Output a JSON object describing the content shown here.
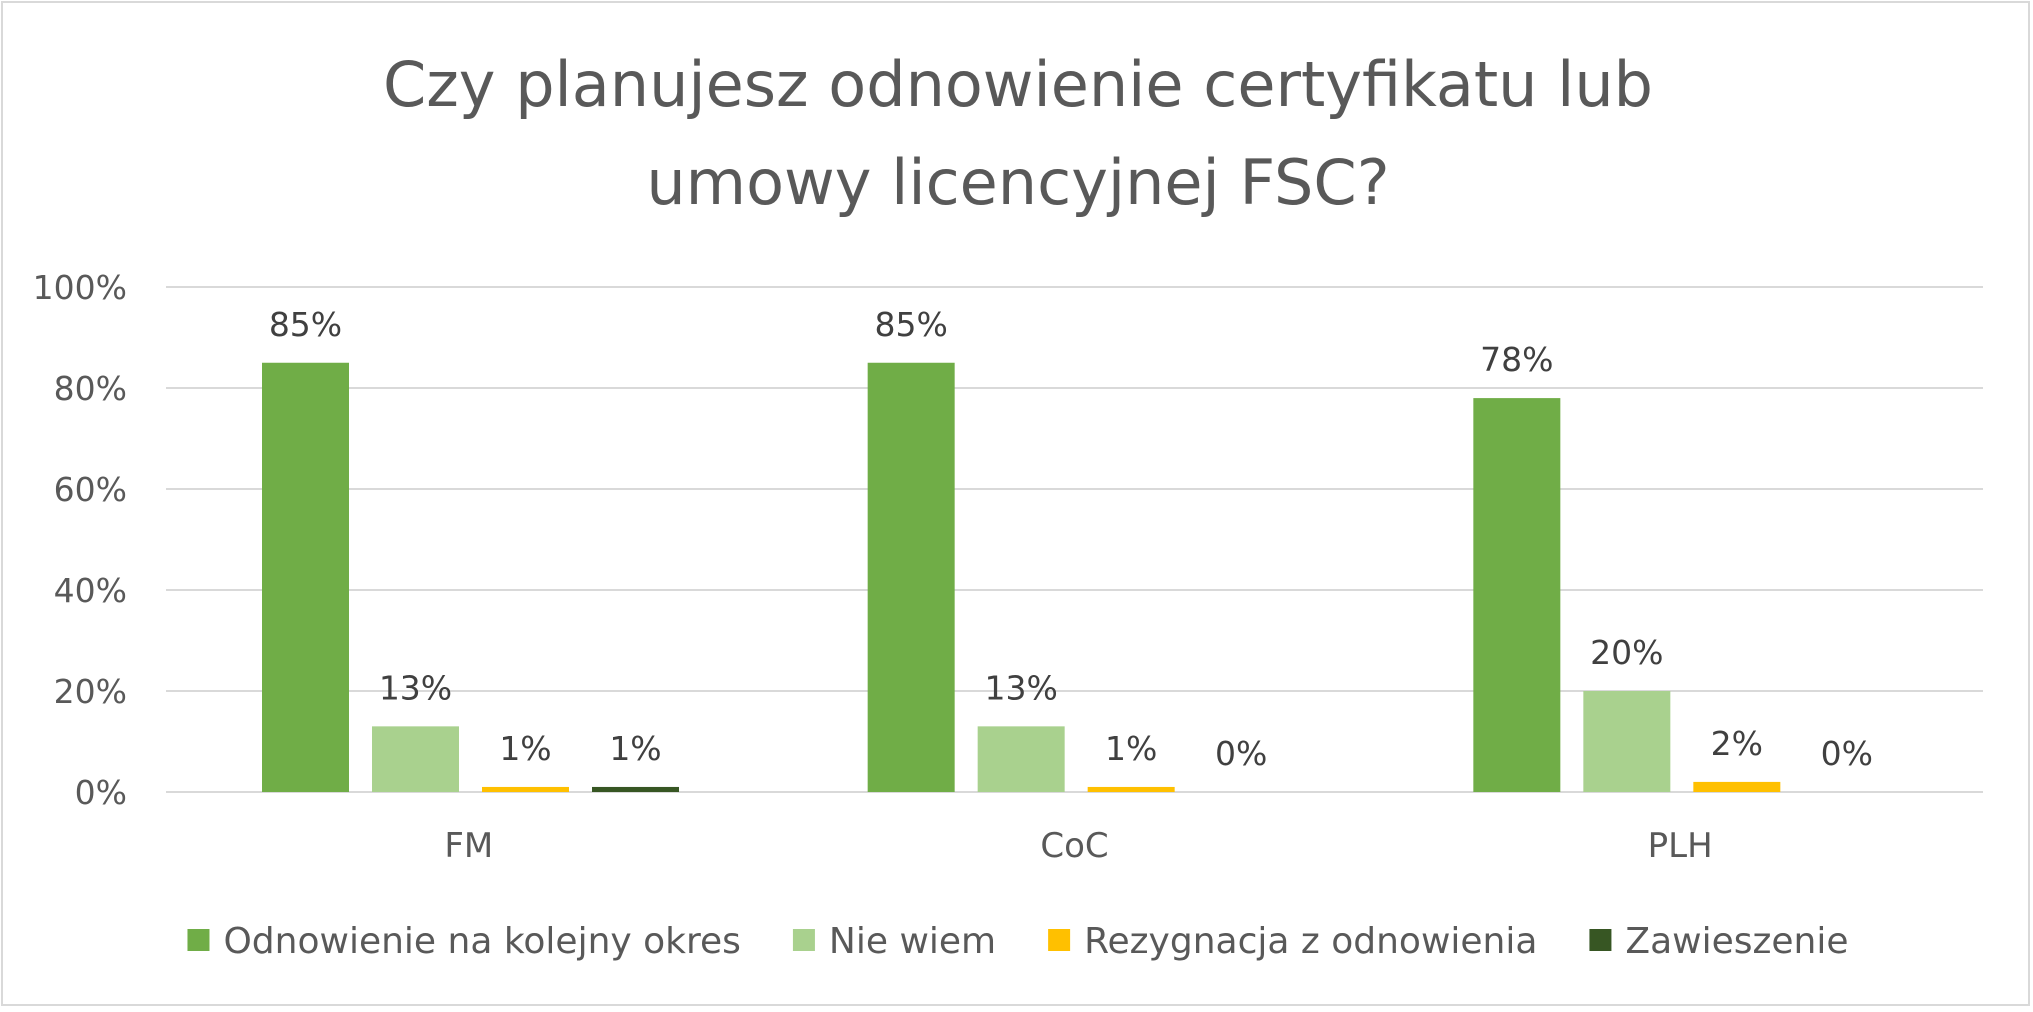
{
  "chart_data": {
    "type": "bar",
    "title_lines": [
      "Czy planujesz odnowienie certyfikatu lub",
      "umowy licencyjnej FSC?"
    ],
    "categories": [
      "FM",
      "CoC",
      "PLH"
    ],
    "series": [
      {
        "name": "Odnowienie na kolejny okres",
        "color": "#70ad47",
        "values": [
          85,
          85,
          78
        ],
        "labels": [
          "85%",
          "85%",
          "78%"
        ]
      },
      {
        "name": "Nie wiem",
        "color": "#a9d18e",
        "values": [
          13,
          13,
          20
        ],
        "labels": [
          "13%",
          "13%",
          "20%"
        ]
      },
      {
        "name": "Rezygnacja z odnowienia",
        "color": "#ffc000",
        "values": [
          1,
          1,
          2
        ],
        "labels": [
          "1%",
          "1%",
          "2%"
        ]
      },
      {
        "name": "Zawieszenie",
        "color": "#375623",
        "values": [
          1,
          0,
          0
        ],
        "labels": [
          "1%",
          "0%",
          "0%"
        ]
      }
    ],
    "ylim": [
      0,
      100
    ],
    "yticks": [
      0,
      20,
      40,
      60,
      80,
      100
    ],
    "ytick_labels": [
      "0%",
      "20%",
      "40%",
      "60%",
      "80%",
      "100%"
    ],
    "xlabel": "",
    "ylabel": "",
    "grid": true,
    "legend_position": "bottom"
  }
}
